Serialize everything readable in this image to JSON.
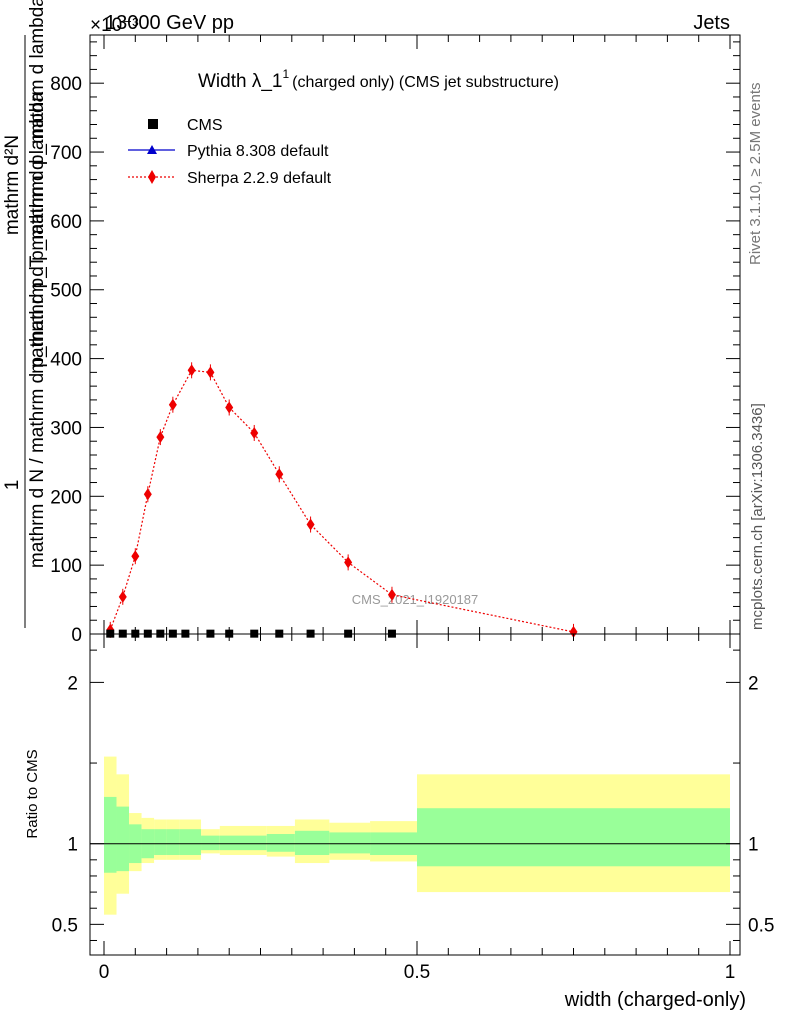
{
  "header": {
    "left": "13000 GeV pp",
    "right": "Jets",
    "exponent": "×10⁻³"
  },
  "side_labels": {
    "rivet": "Rivet 3.1.10, ≥ 2.5M events",
    "mcplots": "mcplots.cern.ch [arXiv:1306.3436]"
  },
  "chart_data": [
    {
      "type": "scatter",
      "title_main": "Width λ_1",
      "title_sup": "1",
      "title_rest": "(charged only) (CMS jet substructure)",
      "ylabel_numerator": "1",
      "ylabel_denominator": "mathrm d N / mathrm d p_mathrm d p_mathrm d lambda",
      "ylabel_numerator2": "mathrm d²N",
      "ylabel_denominator2": "mathrm d p_T mathrm d p_mathrm d lambda",
      "ylabel_display_top": "mathrm d²N",
      "ylabel_display_mid": "mathrm d p_T mathrm d p_mathrm d lambda",
      "ylabel_display_left_top": "1",
      "ylabel_display_left_bottom": "mathrm d N / mathrm d p_mathrm d p_mathrm d lambda",
      "xlim": [
        0,
        1
      ],
      "ylim": [
        0,
        870
      ],
      "yticks": [
        0,
        100,
        200,
        300,
        400,
        500,
        600,
        700,
        800
      ],
      "ytick_labels": [
        "0",
        "100",
        "200",
        "300",
        "400",
        "500",
        "600",
        "700",
        "800"
      ],
      "watermark": "CMS_2021_I1920187",
      "legend": [
        "CMS",
        "Pythia 8.308 default",
        "Sherpa 2.2.9 default"
      ],
      "series": [
        {
          "name": "CMS",
          "x": [
            0.01,
            0.03,
            0.05,
            0.07,
            0.09,
            0.11,
            0.13,
            0.17,
            0.2,
            0.24,
            0.28,
            0.33,
            0.39,
            0.46
          ],
          "values": [
            0.5,
            0.5,
            0.5,
            0.5,
            0.5,
            0.5,
            0.5,
            0.5,
            0.5,
            0.5,
            0.5,
            0.5,
            0.5,
            0.5
          ]
        },
        {
          "name": "Pythia 8.308 default",
          "x": [],
          "values": []
        },
        {
          "name": "Sherpa 2.2.9 default",
          "x": [
            0.01,
            0.03,
            0.05,
            0.07,
            0.09,
            0.11,
            0.14,
            0.17,
            0.2,
            0.24,
            0.28,
            0.33,
            0.39,
            0.46,
            0.75
          ],
          "values": [
            6,
            54,
            113,
            203,
            286,
            333,
            383,
            380,
            329,
            292,
            232,
            159,
            104,
            57,
            3
          ]
        }
      ]
    },
    {
      "type": "area",
      "ylabel": "Ratio to CMS",
      "xlabel": "width (charged-only)",
      "xlim": [
        0,
        1
      ],
      "ylim": [
        0.31,
        2.3
      ],
      "yticks": [
        0.5,
        1,
        2
      ],
      "ytick_labels": [
        "0.5",
        "1",
        "2"
      ],
      "xticks": [
        0,
        0.5,
        1
      ],
      "xtick_labels": [
        "0",
        "0.5",
        "1"
      ],
      "colors": {
        "inner_band": "#99ff99",
        "outer_band": "#ffff99"
      },
      "bins": [
        0,
        0.02,
        0.04,
        0.06,
        0.08,
        0.1,
        0.12,
        0.155,
        0.185,
        0.26,
        0.305,
        0.36,
        0.425,
        0.5,
        1.0
      ],
      "inner_band": {
        "low": [
          0.82,
          0.83,
          0.88,
          0.91,
          0.93,
          0.93,
          0.93,
          0.96,
          0.96,
          0.95,
          0.93,
          0.94,
          0.93,
          0.86
        ],
        "high": [
          1.29,
          1.23,
          1.12,
          1.09,
          1.09,
          1.09,
          1.09,
          1.05,
          1.05,
          1.06,
          1.08,
          1.07,
          1.07,
          1.22
        ]
      },
      "outer_band": {
        "low": [
          0.56,
          0.69,
          0.83,
          0.88,
          0.9,
          0.9,
          0.9,
          0.94,
          0.93,
          0.92,
          0.88,
          0.9,
          0.89,
          0.7
        ],
        "high": [
          1.54,
          1.43,
          1.19,
          1.16,
          1.15,
          1.15,
          1.15,
          1.09,
          1.11,
          1.11,
          1.15,
          1.13,
          1.14,
          1.43
        ]
      }
    }
  ]
}
